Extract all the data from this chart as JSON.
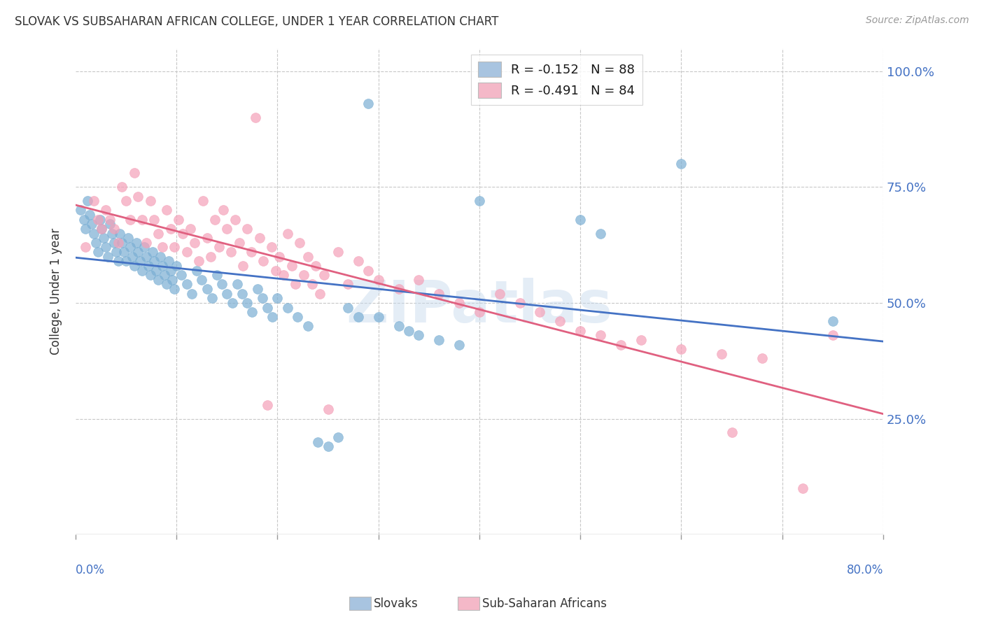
{
  "title": "SLOVAK VS SUBSAHARAN AFRICAN COLLEGE, UNDER 1 YEAR CORRELATION CHART",
  "source": "Source: ZipAtlas.com",
  "ylabel": "College, Under 1 year",
  "ytick_labels": [
    "25.0%",
    "50.0%",
    "75.0%",
    "100.0%"
  ],
  "ytick_values": [
    0.25,
    0.5,
    0.75,
    1.0
  ],
  "xlim": [
    0.0,
    0.8
  ],
  "ylim": [
    0.0,
    1.05
  ],
  "series1_color": "#7bafd4",
  "series2_color": "#f4a0b8",
  "line1_color": "#4472c4",
  "line2_color": "#e06080",
  "r1": -0.152,
  "n1": 88,
  "r2": -0.491,
  "n2": 84,
  "title_color": "#333333",
  "axis_label_color": "#4472c4",
  "watermark": "ZIPatlas",
  "background_color": "#ffffff",
  "grid_color": "#c8c8c8",
  "legend_patch1_color": "#a8c4e0",
  "legend_patch2_color": "#f4b8c8",
  "slovak_points": [
    [
      0.005,
      0.7
    ],
    [
      0.008,
      0.68
    ],
    [
      0.01,
      0.66
    ],
    [
      0.012,
      0.72
    ],
    [
      0.014,
      0.69
    ],
    [
      0.016,
      0.67
    ],
    [
      0.018,
      0.65
    ],
    [
      0.02,
      0.63
    ],
    [
      0.022,
      0.61
    ],
    [
      0.024,
      0.68
    ],
    [
      0.026,
      0.66
    ],
    [
      0.028,
      0.64
    ],
    [
      0.03,
      0.62
    ],
    [
      0.032,
      0.6
    ],
    [
      0.034,
      0.67
    ],
    [
      0.036,
      0.65
    ],
    [
      0.038,
      0.63
    ],
    [
      0.04,
      0.61
    ],
    [
      0.042,
      0.59
    ],
    [
      0.044,
      0.65
    ],
    [
      0.046,
      0.63
    ],
    [
      0.048,
      0.61
    ],
    [
      0.05,
      0.59
    ],
    [
      0.052,
      0.64
    ],
    [
      0.054,
      0.62
    ],
    [
      0.056,
      0.6
    ],
    [
      0.058,
      0.58
    ],
    [
      0.06,
      0.63
    ],
    [
      0.062,
      0.61
    ],
    [
      0.064,
      0.59
    ],
    [
      0.066,
      0.57
    ],
    [
      0.068,
      0.62
    ],
    [
      0.07,
      0.6
    ],
    [
      0.072,
      0.58
    ],
    [
      0.074,
      0.56
    ],
    [
      0.076,
      0.61
    ],
    [
      0.078,
      0.59
    ],
    [
      0.08,
      0.57
    ],
    [
      0.082,
      0.55
    ],
    [
      0.084,
      0.6
    ],
    [
      0.086,
      0.58
    ],
    [
      0.088,
      0.56
    ],
    [
      0.09,
      0.54
    ],
    [
      0.092,
      0.59
    ],
    [
      0.094,
      0.57
    ],
    [
      0.096,
      0.55
    ],
    [
      0.098,
      0.53
    ],
    [
      0.1,
      0.58
    ],
    [
      0.105,
      0.56
    ],
    [
      0.11,
      0.54
    ],
    [
      0.115,
      0.52
    ],
    [
      0.12,
      0.57
    ],
    [
      0.125,
      0.55
    ],
    [
      0.13,
      0.53
    ],
    [
      0.135,
      0.51
    ],
    [
      0.14,
      0.56
    ],
    [
      0.145,
      0.54
    ],
    [
      0.15,
      0.52
    ],
    [
      0.155,
      0.5
    ],
    [
      0.16,
      0.54
    ],
    [
      0.165,
      0.52
    ],
    [
      0.17,
      0.5
    ],
    [
      0.175,
      0.48
    ],
    [
      0.18,
      0.53
    ],
    [
      0.185,
      0.51
    ],
    [
      0.19,
      0.49
    ],
    [
      0.195,
      0.47
    ],
    [
      0.2,
      0.51
    ],
    [
      0.21,
      0.49
    ],
    [
      0.22,
      0.47
    ],
    [
      0.23,
      0.45
    ],
    [
      0.24,
      0.2
    ],
    [
      0.25,
      0.19
    ],
    [
      0.26,
      0.21
    ],
    [
      0.27,
      0.49
    ],
    [
      0.28,
      0.47
    ],
    [
      0.29,
      0.93
    ],
    [
      0.3,
      0.47
    ],
    [
      0.32,
      0.45
    ],
    [
      0.33,
      0.44
    ],
    [
      0.34,
      0.43
    ],
    [
      0.36,
      0.42
    ],
    [
      0.38,
      0.41
    ],
    [
      0.4,
      0.72
    ],
    [
      0.5,
      0.68
    ],
    [
      0.52,
      0.65
    ],
    [
      0.6,
      0.8
    ],
    [
      0.75,
      0.46
    ]
  ],
  "subsaharan_points": [
    [
      0.01,
      0.62
    ],
    [
      0.018,
      0.72
    ],
    [
      0.022,
      0.68
    ],
    [
      0.026,
      0.66
    ],
    [
      0.03,
      0.7
    ],
    [
      0.034,
      0.68
    ],
    [
      0.038,
      0.66
    ],
    [
      0.042,
      0.63
    ],
    [
      0.046,
      0.75
    ],
    [
      0.05,
      0.72
    ],
    [
      0.054,
      0.68
    ],
    [
      0.058,
      0.78
    ],
    [
      0.062,
      0.73
    ],
    [
      0.066,
      0.68
    ],
    [
      0.07,
      0.63
    ],
    [
      0.074,
      0.72
    ],
    [
      0.078,
      0.68
    ],
    [
      0.082,
      0.65
    ],
    [
      0.086,
      0.62
    ],
    [
      0.09,
      0.7
    ],
    [
      0.094,
      0.66
    ],
    [
      0.098,
      0.62
    ],
    [
      0.102,
      0.68
    ],
    [
      0.106,
      0.65
    ],
    [
      0.11,
      0.61
    ],
    [
      0.114,
      0.66
    ],
    [
      0.118,
      0.63
    ],
    [
      0.122,
      0.59
    ],
    [
      0.126,
      0.72
    ],
    [
      0.13,
      0.64
    ],
    [
      0.134,
      0.6
    ],
    [
      0.138,
      0.68
    ],
    [
      0.142,
      0.62
    ],
    [
      0.146,
      0.7
    ],
    [
      0.15,
      0.66
    ],
    [
      0.154,
      0.61
    ],
    [
      0.158,
      0.68
    ],
    [
      0.162,
      0.63
    ],
    [
      0.166,
      0.58
    ],
    [
      0.17,
      0.66
    ],
    [
      0.174,
      0.61
    ],
    [
      0.178,
      0.9
    ],
    [
      0.182,
      0.64
    ],
    [
      0.186,
      0.59
    ],
    [
      0.19,
      0.28
    ],
    [
      0.194,
      0.62
    ],
    [
      0.198,
      0.57
    ],
    [
      0.202,
      0.6
    ],
    [
      0.206,
      0.56
    ],
    [
      0.21,
      0.65
    ],
    [
      0.214,
      0.58
    ],
    [
      0.218,
      0.54
    ],
    [
      0.222,
      0.63
    ],
    [
      0.226,
      0.56
    ],
    [
      0.23,
      0.6
    ],
    [
      0.234,
      0.54
    ],
    [
      0.238,
      0.58
    ],
    [
      0.242,
      0.52
    ],
    [
      0.246,
      0.56
    ],
    [
      0.25,
      0.27
    ],
    [
      0.26,
      0.61
    ],
    [
      0.27,
      0.54
    ],
    [
      0.28,
      0.59
    ],
    [
      0.29,
      0.57
    ],
    [
      0.3,
      0.55
    ],
    [
      0.32,
      0.53
    ],
    [
      0.34,
      0.55
    ],
    [
      0.36,
      0.52
    ],
    [
      0.38,
      0.5
    ],
    [
      0.4,
      0.48
    ],
    [
      0.42,
      0.52
    ],
    [
      0.44,
      0.5
    ],
    [
      0.46,
      0.48
    ],
    [
      0.48,
      0.46
    ],
    [
      0.5,
      0.44
    ],
    [
      0.52,
      0.43
    ],
    [
      0.54,
      0.41
    ],
    [
      0.56,
      0.42
    ],
    [
      0.6,
      0.4
    ],
    [
      0.64,
      0.39
    ],
    [
      0.65,
      0.22
    ],
    [
      0.68,
      0.38
    ],
    [
      0.72,
      0.1
    ],
    [
      0.75,
      0.43
    ]
  ]
}
